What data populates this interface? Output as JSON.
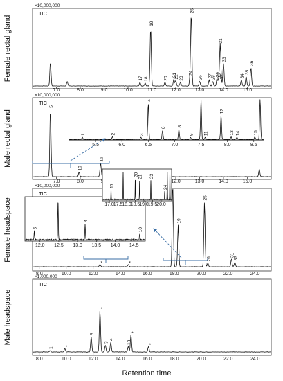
{
  "chart_data": [
    {
      "type": "line",
      "panel": "female-rectal-gland",
      "ylabel": "Female rectal gland",
      "multiplier": "×10,000,000",
      "trace_label": "TIC",
      "x_range": [
        6.0,
        16.0
      ],
      "xticks": [
        "7.0",
        "8.0",
        "9.0",
        "10.0",
        "11.0",
        "12.0",
        "13.0",
        "14.0",
        "15.0"
      ],
      "peaks": [
        {
          "label": "",
          "x": 6.75,
          "h": 0.32
        },
        {
          "label": "",
          "x": 7.45,
          "h": 0.06
        },
        {
          "label": "17",
          "x": 10.5,
          "h": 0.05
        },
        {
          "label": "18",
          "x": 10.72,
          "h": 0.04
        },
        {
          "label": "19",
          "x": 10.95,
          "h": 0.78
        },
        {
          "label": "20",
          "x": 11.55,
          "h": 0.05
        },
        {
          "label": "21",
          "x": 11.92,
          "h": 0.09
        },
        {
          "label": "22",
          "x": 12.0,
          "h": 0.07
        },
        {
          "label": "23",
          "x": 12.2,
          "h": 0.05
        },
        {
          "label": "24",
          "x": 12.6,
          "h": 0.12
        },
        {
          "label": "25",
          "x": 12.65,
          "h": 0.95
        },
        {
          "label": "26",
          "x": 13.0,
          "h": 0.06
        },
        {
          "label": "27",
          "x": 13.4,
          "h": 0.08
        },
        {
          "label": "28",
          "x": 13.55,
          "h": 0.06
        },
        {
          "label": "29",
          "x": 13.73,
          "h": 0.1
        },
        {
          "label": "30",
          "x": 13.8,
          "h": 0.08
        },
        {
          "label": "31",
          "x": 13.86,
          "h": 0.55
        },
        {
          "label": "32",
          "x": 13.9,
          "h": 0.07
        },
        {
          "label": "33",
          "x": 14.0,
          "h": 0.3
        },
        {
          "label": "34",
          "x": 14.75,
          "h": 0.08
        },
        {
          "label": "35",
          "x": 14.95,
          "h": 0.13
        },
        {
          "label": "36",
          "x": 15.15,
          "h": 0.25
        }
      ]
    },
    {
      "type": "line",
      "panel": "male-rectal-gland",
      "ylabel": "Male rectal gland",
      "multiplier": "×10,000,000",
      "trace_label": "TIC",
      "x_range": [
        6.0,
        16.0
      ],
      "xticks": [
        "7.0",
        "8.0",
        "9.0",
        "10.0",
        "11.0",
        "12.0",
        "13.0",
        "14.0",
        "15.0"
      ],
      "peaks": [
        {
          "label": "5",
          "x": 6.75,
          "h": 0.9
        },
        {
          "label": "10",
          "x": 7.95,
          "h": 0.06
        },
        {
          "label": "16",
          "x": 8.85,
          "h": 0.18
        },
        {
          "label": "",
          "x": 15.5,
          "h": 0.1
        }
      ],
      "inset": {
        "x_range": [
          5.0,
          8.7
        ],
        "xticks": [
          "5.5",
          "6.0",
          "6.5",
          "7.0",
          "7.5",
          "8.0",
          "8.5"
        ],
        "peaks": [
          {
            "label": "1",
            "x": 5.25,
            "h": 0.05
          },
          {
            "label": "2",
            "x": 5.82,
            "h": 0.06
          },
          {
            "label": "3",
            "x": 6.36,
            "h": 0.05
          },
          {
            "label": "4",
            "x": 6.5,
            "h": 0.9
          },
          {
            "label": "6",
            "x": 6.77,
            "h": 0.22
          },
          {
            "label": "8",
            "x": 7.08,
            "h": 0.25
          },
          {
            "label": "9",
            "x": 7.3,
            "h": 0.05
          },
          {
            "label": "",
            "x": 7.5,
            "h": 1.0
          },
          {
            "label": "11",
            "x": 7.58,
            "h": 0.05
          },
          {
            "label": "12",
            "x": 7.88,
            "h": 0.6
          },
          {
            "label": "13",
            "x": 8.07,
            "h": 0.06
          },
          {
            "label": "14",
            "x": 8.18,
            "h": 0.05
          },
          {
            "label": "15",
            "x": 8.52,
            "h": 0.06
          },
          {
            "label": "",
            "x": 8.62,
            "h": 1.0
          }
        ]
      }
    },
    {
      "type": "line",
      "panel": "female-headspace",
      "ylabel": "Female headspace",
      "multiplier": "×10,000,000",
      "trace_label": "TIC",
      "x_range": [
        7.5,
        25.2
      ],
      "xticks": [
        "8.0",
        "10.0",
        "12.0",
        "14.0",
        "16.0",
        "18.0",
        "20.0",
        "22.0",
        "24.0"
      ],
      "peaks": [
        {
          "label": "*",
          "x": 12.5,
          "h": 0.03
        },
        {
          "label": "*",
          "x": 14.6,
          "h": 0.03
        },
        {
          "label": "",
          "x": 17.9,
          "h": 1.2
        },
        {
          "label": "19",
          "x": 18.3,
          "h": 0.55
        },
        {
          "label": "25",
          "x": 20.25,
          "h": 0.85
        },
        {
          "label": "26",
          "x": 20.5,
          "h": 0.05
        },
        {
          "label": "31",
          "x": 22.25,
          "h": 0.1
        },
        {
          "label": "33",
          "x": 22.5,
          "h": 0.06
        }
      ],
      "inset_left": {
        "x_range": [
          11.6,
          14.8
        ],
        "xticks": [
          "12.0",
          "12.5",
          "13.0",
          "13.5",
          "14.0",
          "14.5"
        ],
        "peaks": [
          {
            "label": "5",
            "x": 11.85,
            "h": 0.22
          },
          {
            "label": "",
            "x": 12.48,
            "h": 1.0
          },
          {
            "label": "4",
            "x": 13.2,
            "h": 0.4
          },
          {
            "label": "10",
            "x": 14.65,
            "h": 0.15
          }
        ]
      },
      "inset_right": {
        "x_range": [
          16.6,
          20.6
        ],
        "xticks": [
          "17.0",
          "17.5",
          "18.0",
          "18.5",
          "19.0",
          "19.5",
          "20.0"
        ],
        "peaks": [
          {
            "label": "17",
            "x": 17.1,
            "h": 0.35
          },
          {
            "label": "",
            "x": 17.8,
            "h": 1.0
          },
          {
            "label": "20",
            "x": 18.5,
            "h": 0.75
          },
          {
            "label": "21",
            "x": 18.75,
            "h": 0.68
          },
          {
            "label": "23",
            "x": 19.4,
            "h": 0.7
          },
          {
            "label": "24",
            "x": 20.2,
            "h": 0.3
          },
          {
            "label": "",
            "x": 20.35,
            "h": 1.0
          },
          {
            "label": "",
            "x": 20.5,
            "h": 1.0
          }
        ]
      }
    },
    {
      "type": "line",
      "panel": "male-headspace",
      "ylabel": "Male headspace",
      "multiplier": "×1,000,000",
      "trace_label": "TIC",
      "x_range": [
        7.5,
        25.2
      ],
      "xticks": [
        "8.0",
        "10.0",
        "12.0",
        "14.0",
        "16.0",
        "18.0",
        "20.0",
        "22.0",
        "24.0"
      ],
      "peaks": [
        {
          "label": "1",
          "x": 8.8,
          "h": 0.02
        },
        {
          "label": "*",
          "x": 9.9,
          "h": 0.05
        },
        {
          "label": "5",
          "x": 11.85,
          "h": 0.22
        },
        {
          "label": "*",
          "x": 12.5,
          "h": 0.6
        },
        {
          "label": "3",
          "x": 12.9,
          "h": 0.1
        },
        {
          "label": "4",
          "x": 13.3,
          "h": 0.14
        },
        {
          "label": "10",
          "x": 14.6,
          "h": 0.08
        },
        {
          "label": "*",
          "x": 14.8,
          "h": 0.25
        },
        {
          "label": "*",
          "x": 16.1,
          "h": 0.08
        }
      ]
    }
  ],
  "xlabel": "Retention time"
}
